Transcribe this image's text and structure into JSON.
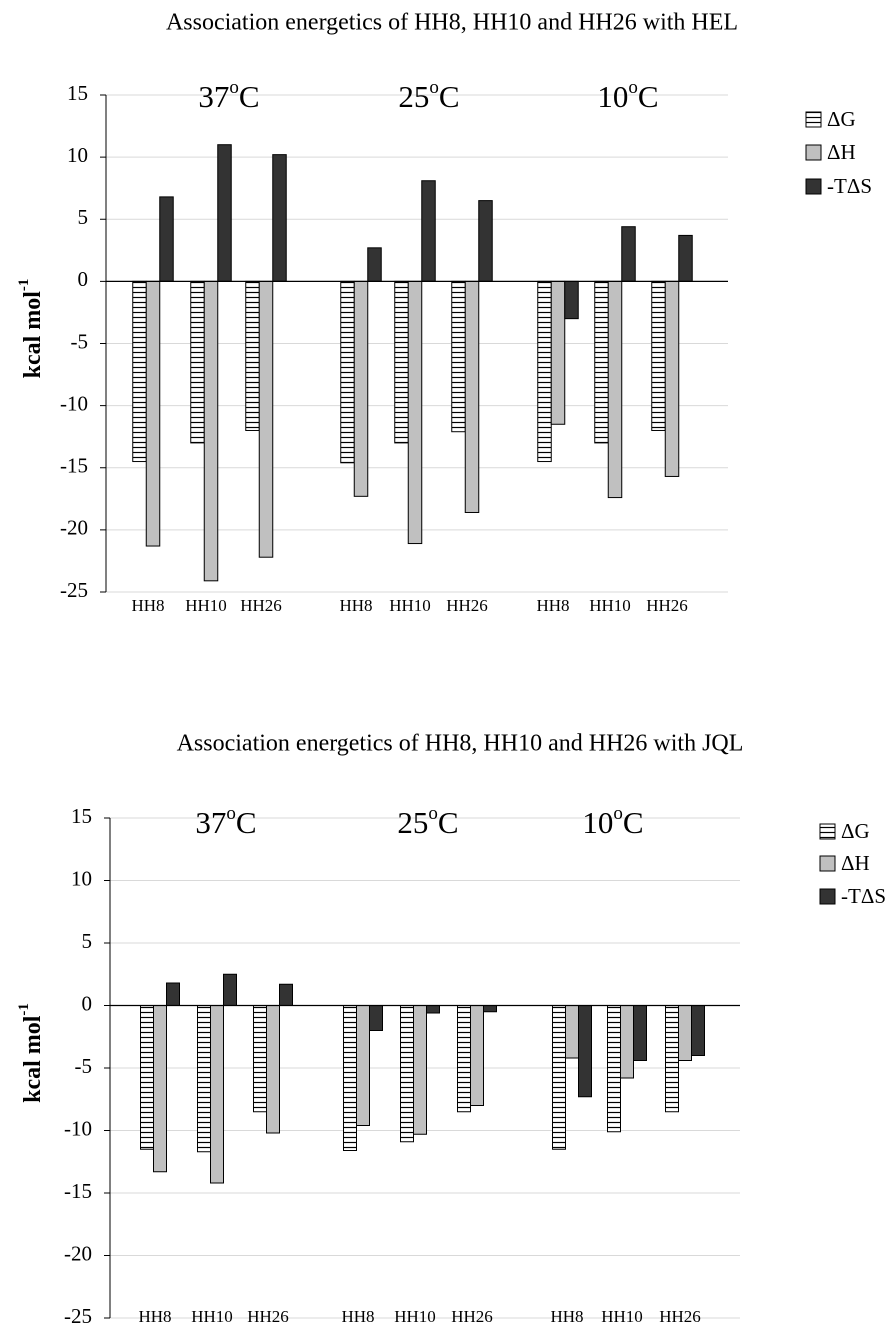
{
  "chart_data": [
    {
      "type": "bar",
      "title": "Association energetics of HH8, HH10 and HH26 with HEL",
      "y_label": {
        "text": "kcal mol",
        "sup": "-1"
      },
      "groups": [
        {
          "number": "37",
          "sup": "o",
          "unit": "C"
        },
        {
          "number": "25",
          "sup": "o",
          "unit": "C"
        },
        {
          "number": "10",
          "sup": "o",
          "unit": "C"
        }
      ],
      "categories": [
        "HH8",
        "HH10",
        "HH26",
        "HH8",
        "HH10",
        "HH26",
        "HH8",
        "HH10",
        "HH26"
      ],
      "series": [
        {
          "name": "ΔG",
          "color": "#ffffff",
          "hatch": "horizontal",
          "values": [
            -14.5,
            -13,
            -12,
            -14.6,
            -13,
            -12.1,
            -14.5,
            -13,
            -12
          ]
        },
        {
          "name": "ΔH",
          "color": "#c0c0c0",
          "values": [
            -21.3,
            -24.1,
            -22.2,
            -17.3,
            -21.1,
            -18.6,
            -11.5,
            -17.4,
            -15.7
          ]
        },
        {
          "name": "-TΔS",
          "color": "#333333",
          "values": [
            6.8,
            11,
            10.2,
            2.7,
            8.1,
            6.5,
            -3,
            4.4,
            3.7
          ]
        }
      ],
      "ylim": [
        -25,
        15
      ],
      "yticks": [
        -25,
        -20,
        -15,
        -10,
        -5,
        0,
        5,
        10,
        15
      ],
      "grid": true,
      "legend": "right"
    },
    {
      "type": "bar",
      "title": "Association energetics of HH8, HH10 and HH26 with JQL",
      "y_label": {
        "text": "kcal mol",
        "sup": "-1"
      },
      "groups": [
        {
          "number": "37",
          "sup": "o",
          "unit": "C"
        },
        {
          "number": "25",
          "sup": "o",
          "unit": "C"
        },
        {
          "number": "10",
          "sup": "o",
          "unit": "C"
        }
      ],
      "categories": [
        "HH8",
        "HH10",
        "HH26",
        "HH8",
        "HH10",
        "HH26",
        "HH8",
        "HH10",
        "HH26"
      ],
      "series": [
        {
          "name": "ΔG",
          "color": "#ffffff",
          "hatch": "horizontal",
          "values": [
            -11.5,
            -11.7,
            -8.5,
            -11.6,
            -10.9,
            -8.5,
            -11.5,
            -10.1,
            -8.5
          ]
        },
        {
          "name": "ΔH",
          "color": "#c0c0c0",
          "values": [
            -13.3,
            -14.2,
            -10.2,
            -9.6,
            -10.3,
            -8,
            -4.2,
            -5.8,
            -4.4
          ]
        },
        {
          "name": "-TΔS",
          "color": "#333333",
          "values": [
            1.8,
            2.5,
            1.7,
            -2,
            -0.6,
            -0.5,
            -7.3,
            -4.4,
            -4
          ]
        }
      ],
      "ylim": [
        -25,
        15
      ],
      "yticks": [
        -25,
        -20,
        -15,
        -10,
        -5,
        0,
        5,
        10,
        15
      ],
      "grid": true,
      "legend": "right"
    }
  ]
}
